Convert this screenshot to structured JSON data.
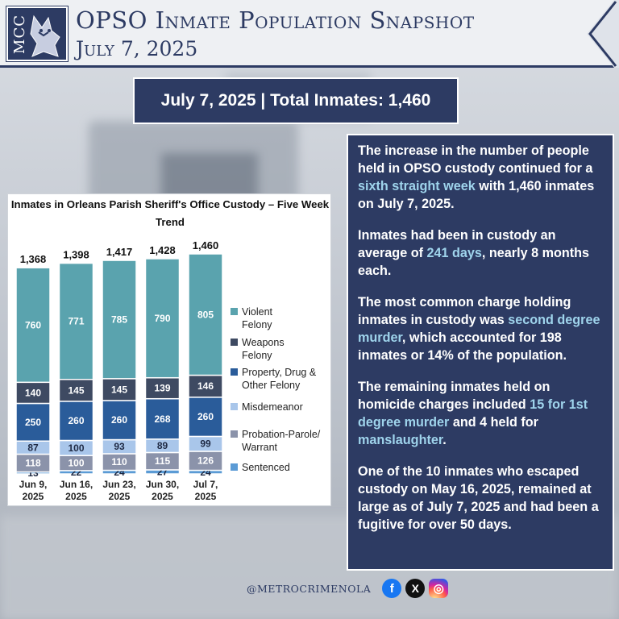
{
  "header": {
    "logo_text": "MCC",
    "title": "OPSO Inmate Population Snapshot",
    "date": "July 7, 2025"
  },
  "banner": {
    "text": "July 7, 2025 | Total Inmates: 1,460"
  },
  "panel": {
    "p1": {
      "a": "The increase in the number of people held in OPSO custody continued for a ",
      "b": "sixth straight week",
      "c": " with 1,460 inmates on July 7, 2025."
    },
    "p2": {
      "a": "Inmates had been in custody an average of ",
      "b": "241 days",
      "c": ", nearly 8 months each."
    },
    "p3": {
      "a": "The most common charge holding inmates in custody was ",
      "b": "second degree murder",
      "c": ", which accounted for 198 inmates or 14% of the population."
    },
    "p4": {
      "a": "The remaining inmates held on homicide charges included ",
      "b": "15 for 1st degree murder",
      "c": " and 4 held for ",
      "d": "manslaughter",
      "e": "."
    },
    "p5": {
      "a": "One of the 10 inmates who escaped custody on May 16, 2025, remained at large as of July 7, 2025 and had been a fugitive for over 50 days."
    }
  },
  "footer": {
    "handle": "@METROCRIMENOLA",
    "icons": [
      "facebook-icon",
      "x-icon",
      "instagram-icon"
    ]
  },
  "colors": {
    "navy": "#2d3b63",
    "highlight": "#9fd4ec"
  },
  "chart_data": {
    "type": "bar",
    "stacked": true,
    "title": "Inmates in Orleans Parish Sheriff's Office Custody – Five Week Trend",
    "categories": [
      "Jun 9, 2025",
      "Jun 16, 2025",
      "Jun 23, 2025",
      "Jun 30, 2025",
      "Jul 7, 2025"
    ],
    "totals": [
      "1,368",
      "1,398",
      "1,417",
      "1,428",
      "1,460"
    ],
    "total_values": [
      1368,
      1398,
      1417,
      1428,
      1460
    ],
    "series": [
      {
        "name": "Sentenced",
        "color": "#5b9bd5",
        "values": [
          13,
          22,
          24,
          27,
          24
        ]
      },
      {
        "name": "Probation-Parole/ Warrant",
        "color": "#8b93aa",
        "values": [
          118,
          100,
          110,
          115,
          126
        ]
      },
      {
        "name": "Misdemeanor",
        "color": "#a9c6ea",
        "values": [
          87,
          100,
          93,
          89,
          99
        ]
      },
      {
        "name": "Property, Drug & Other Felony",
        "color": "#2a5c9a",
        "values": [
          250,
          260,
          260,
          268,
          260
        ]
      },
      {
        "name": "Weapons Felony",
        "color": "#3e4a62",
        "values": [
          140,
          145,
          145,
          139,
          146
        ]
      },
      {
        "name": "Violent Felony",
        "color": "#5aa3ae",
        "values": [
          760,
          771,
          785,
          790,
          805
        ]
      }
    ],
    "legend_position": "right",
    "ylim": [
      0,
      1460
    ]
  }
}
